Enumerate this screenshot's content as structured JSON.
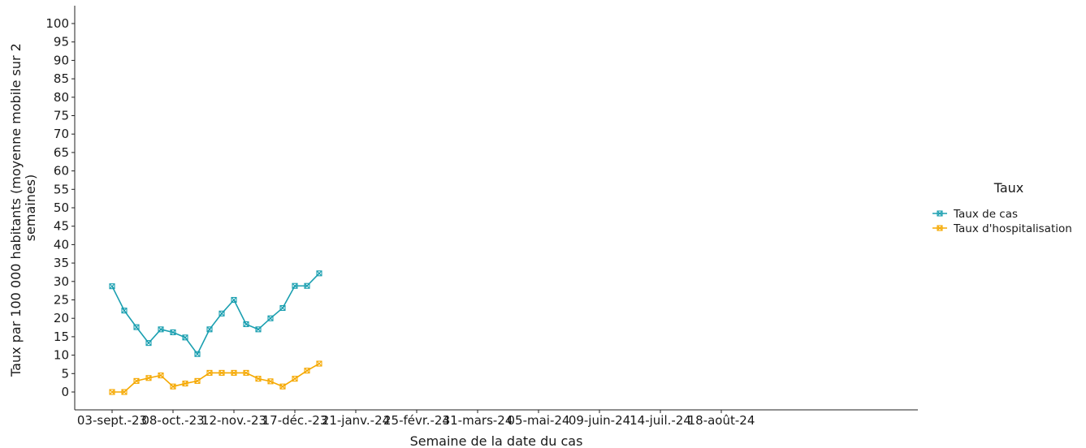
{
  "chart_data": {
    "type": "line",
    "xlabel": "Semaine de la date du cas",
    "ylabel": "Taux par 100 000 habitants (moyenne mobile sur 2 semaines)",
    "ylabel_lines": [
      "Taux par 100 000 habitants (moyenne mobile sur 2",
      "semaines)"
    ],
    "ylim": [
      0,
      100
    ],
    "yticks": [
      0,
      5,
      10,
      15,
      20,
      25,
      30,
      35,
      40,
      45,
      50,
      55,
      60,
      65,
      70,
      75,
      80,
      85,
      90,
      95,
      100
    ],
    "x_tick_labels": [
      "03-sept.-23",
      "08-oct.-23",
      "12-nov.-23",
      "17-déc.-23",
      "21-janv.-24",
      "25-févr.-24",
      "31-mars-24",
      "05-mai-24",
      "09-juin-24",
      "14-juil.-24",
      "18-août-24"
    ],
    "x_tick_week_index": [
      0,
      5,
      10,
      15,
      20,
      25,
      30,
      35,
      40,
      45,
      50
    ],
    "x_week_range": [
      -2,
      55
    ],
    "grid": false,
    "legend_position": "right",
    "legend_title": "Taux",
    "series": [
      {
        "name": "Taux de cas",
        "color": "#1a9fb0",
        "week_index": [
          0,
          1,
          2,
          3,
          4,
          5,
          6,
          7,
          8,
          9,
          10,
          11,
          12,
          13,
          14,
          15,
          16,
          17
        ],
        "values": [
          28.7,
          22.1,
          17.6,
          13.3,
          17.0,
          16.2,
          14.8,
          10.3,
          17.0,
          21.3,
          25.0,
          18.4,
          17.0,
          20.0,
          22.8,
          28.8,
          28.8,
          32.2
        ]
      },
      {
        "name": "Taux d'hospitalisation",
        "color": "#f5a800",
        "week_index": [
          0,
          1,
          2,
          3,
          4,
          5,
          6,
          7,
          8,
          9,
          10,
          11,
          12,
          13,
          14,
          15,
          16,
          17
        ],
        "values": [
          0.0,
          0.0,
          3.0,
          3.8,
          4.5,
          1.5,
          2.3,
          3.0,
          5.2,
          5.2,
          5.2,
          5.2,
          3.6,
          2.9,
          1.5,
          3.6,
          5.8,
          7.7
        ]
      }
    ]
  }
}
